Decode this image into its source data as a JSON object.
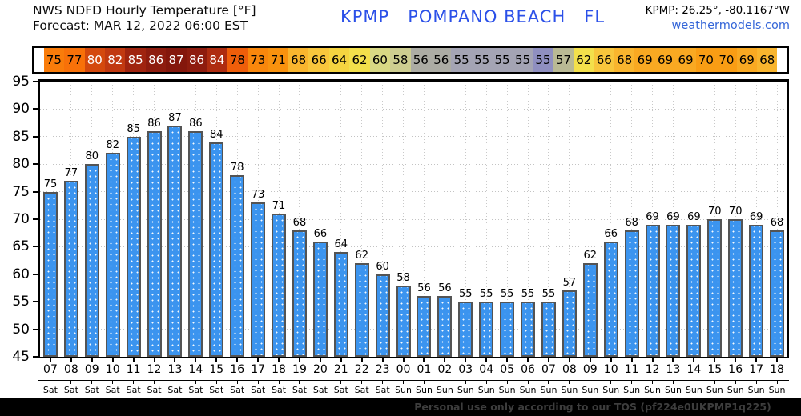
{
  "header": {
    "title_line1": "NWS NDFD Hourly Temperature [°F]",
    "title_line2": "Forecast: MAR 12, 2022 06:00 EST",
    "station_title": "KPMP   POMPANO BEACH   FL",
    "coords": "KPMP: 26.25°, -80.1167°W",
    "site": "weathermodels.com",
    "accent_blue": "#2b50e8"
  },
  "footer": {
    "text": "Personal use only according to our TOS (pf224e0UKPMP1q225)"
  },
  "chart_data": {
    "type": "bar",
    "title": "NWS NDFD Hourly Temperature [°F]",
    "xlabel": "",
    "ylabel": "",
    "ylim": [
      45,
      95
    ],
    "yticks": [
      45,
      50,
      55,
      60,
      65,
      70,
      75,
      80,
      85,
      90,
      95
    ],
    "grid": "dotted",
    "legend": "none",
    "bar_color": "#3b94ef",
    "bar_edge_color": "#545454",
    "hours": [
      "07",
      "08",
      "09",
      "10",
      "11",
      "12",
      "13",
      "14",
      "15",
      "16",
      "17",
      "18",
      "19",
      "20",
      "21",
      "22",
      "23",
      "00",
      "01",
      "02",
      "03",
      "04",
      "05",
      "06",
      "07",
      "08",
      "09",
      "10",
      "11",
      "12",
      "13",
      "14",
      "15",
      "16",
      "17",
      "18"
    ],
    "days": [
      "Sat",
      "Sat",
      "Sat",
      "Sat",
      "Sat",
      "Sat",
      "Sat",
      "Sat",
      "Sat",
      "Sat",
      "Sat",
      "Sat",
      "Sat",
      "Sat",
      "Sat",
      "Sat",
      "Sat",
      "Sun",
      "Sun",
      "Sun",
      "Sun",
      "Sun",
      "Sun",
      "Sun",
      "Sun",
      "Sun",
      "Sun",
      "Sun",
      "Sun",
      "Sun",
      "Sun",
      "Sun",
      "Sun",
      "Sun",
      "Sun",
      "Sun"
    ],
    "values": [
      75,
      77,
      80,
      82,
      85,
      86,
      87,
      86,
      84,
      78,
      73,
      71,
      68,
      66,
      64,
      62,
      60,
      58,
      56,
      56,
      55,
      55,
      55,
      55,
      55,
      57,
      62,
      66,
      68,
      69,
      69,
      69,
      70,
      70,
      69,
      68
    ],
    "strip_colors": [
      "#f97c0a",
      "#f87109",
      "#d4490d",
      "#c13910",
      "#a0240f",
      "#8e1c0e",
      "#84170c",
      "#8e1c0e",
      "#ae2c10",
      "#ef5e0a",
      "#f9870c",
      "#f9920e",
      "#f9b52e",
      "#f8c63c",
      "#f5d440",
      "#f3e04b",
      "#d8d884",
      "#cdcd90",
      "#acaca4",
      "#acaca4",
      "#a4a4b4",
      "#a4a4b4",
      "#a4a4b4",
      "#a4a4b4",
      "#8f8fc0",
      "#b9b994",
      "#f3e04b",
      "#f8c63c",
      "#f9b52e",
      "#f9a922",
      "#f9a922",
      "#f9a922",
      "#f99d14",
      "#f99d14",
      "#f9a922",
      "#f9b52e"
    ],
    "strip_white_text_threshold": 80
  }
}
